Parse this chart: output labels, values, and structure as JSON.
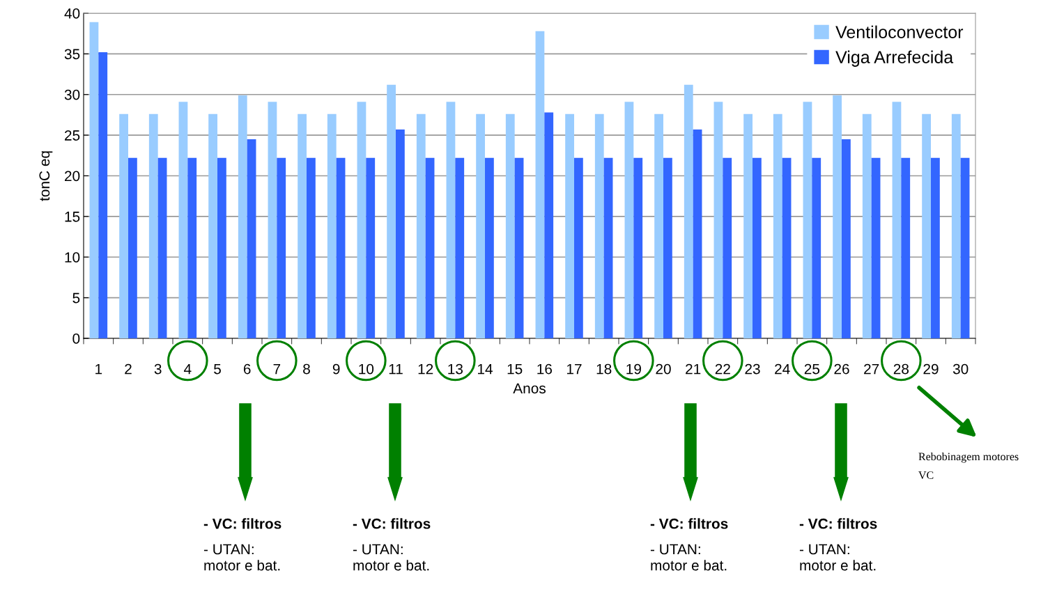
{
  "chart_data": {
    "type": "bar",
    "xlabel": "Anos",
    "ylabel": "tonC eq",
    "categories": [
      "1",
      "2",
      "3",
      "4",
      "5",
      "6",
      "7",
      "8",
      "9",
      "10",
      "11",
      "12",
      "13",
      "14",
      "15",
      "16",
      "17",
      "18",
      "19",
      "20",
      "21",
      "22",
      "23",
      "24",
      "25",
      "26",
      "27",
      "28",
      "29",
      "30"
    ],
    "series": [
      {
        "name": "Ventiloconvector",
        "color": "#99ccff",
        "values": [
          38.9,
          27.6,
          27.6,
          29.1,
          27.6,
          29.9,
          29.1,
          27.6,
          27.6,
          29.1,
          31.2,
          27.6,
          29.1,
          27.6,
          27.6,
          37.8,
          27.6,
          27.6,
          29.1,
          27.6,
          31.2,
          29.1,
          27.6,
          27.6,
          29.1,
          29.9,
          27.6,
          29.1,
          27.6,
          27.6
        ]
      },
      {
        "name": "Viga Arrefecida",
        "color": "#3366ff",
        "values": [
          35.2,
          22.2,
          22.2,
          22.2,
          22.2,
          24.5,
          22.2,
          22.2,
          22.2,
          22.2,
          25.7,
          22.2,
          22.2,
          22.2,
          22.2,
          27.8,
          22.2,
          22.2,
          22.2,
          22.2,
          25.7,
          22.2,
          22.2,
          22.2,
          22.2,
          24.5,
          22.2,
          22.2,
          22.2,
          22.2
        ]
      }
    ],
    "ylim": [
      0,
      40
    ],
    "yticks": [
      0,
      5,
      10,
      15,
      20,
      25,
      30,
      35,
      40
    ],
    "grid": "y",
    "legend": "top right",
    "annotations": [
      "- VC: filtros",
      "- UTAN:\nmotor e bat.",
      "- VC: filtros",
      "- UTAN:\nmotor e bat.",
      "- VC: filtros",
      "- UTAN:\nmotor e bat.",
      "- VC: filtros",
      "- UTAN:\nmotor e bat.",
      "Rebobinagem motores VC"
    ]
  }
}
